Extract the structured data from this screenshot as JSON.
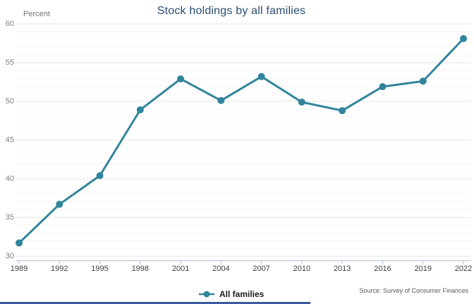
{
  "chart": {
    "title": "Stock holdings by all families",
    "axis_unit_label": "Percent",
    "legend": {
      "label": "All families"
    },
    "source": "Source: Survey of Consumer Finances"
  },
  "chart_data": {
    "type": "line",
    "title": "Stock holdings by all families",
    "ylabel": "Percent",
    "xlabel": "",
    "categories": [
      "1989",
      "1992",
      "1995",
      "1998",
      "2001",
      "2004",
      "2007",
      "2010",
      "2013",
      "2016",
      "2019",
      "2022"
    ],
    "series": [
      {
        "name": "All families",
        "values": [
          31.7,
          36.7,
          40.4,
          48.9,
          52.9,
          50.1,
          53.2,
          49.9,
          48.8,
          51.9,
          52.6,
          58.1
        ]
      }
    ],
    "ylim": [
      30,
      60
    ],
    "ytick_interval": 5,
    "minor_gridline_interval": 1,
    "grid": "horizontal",
    "legend_position": "bottom-center",
    "marker": "circle"
  },
  "colors": {
    "line": "#31849B",
    "title": "#2A4D73",
    "axis": "#B3BFD9",
    "gridline_major": "#E5E5E5",
    "gridline_minor": "#F4F4F4",
    "ytick_label": "#7F7F7F",
    "xtick_label": "#3F3F3F",
    "source_text": "#595959",
    "bottom_strip": "#3B5B9D"
  }
}
